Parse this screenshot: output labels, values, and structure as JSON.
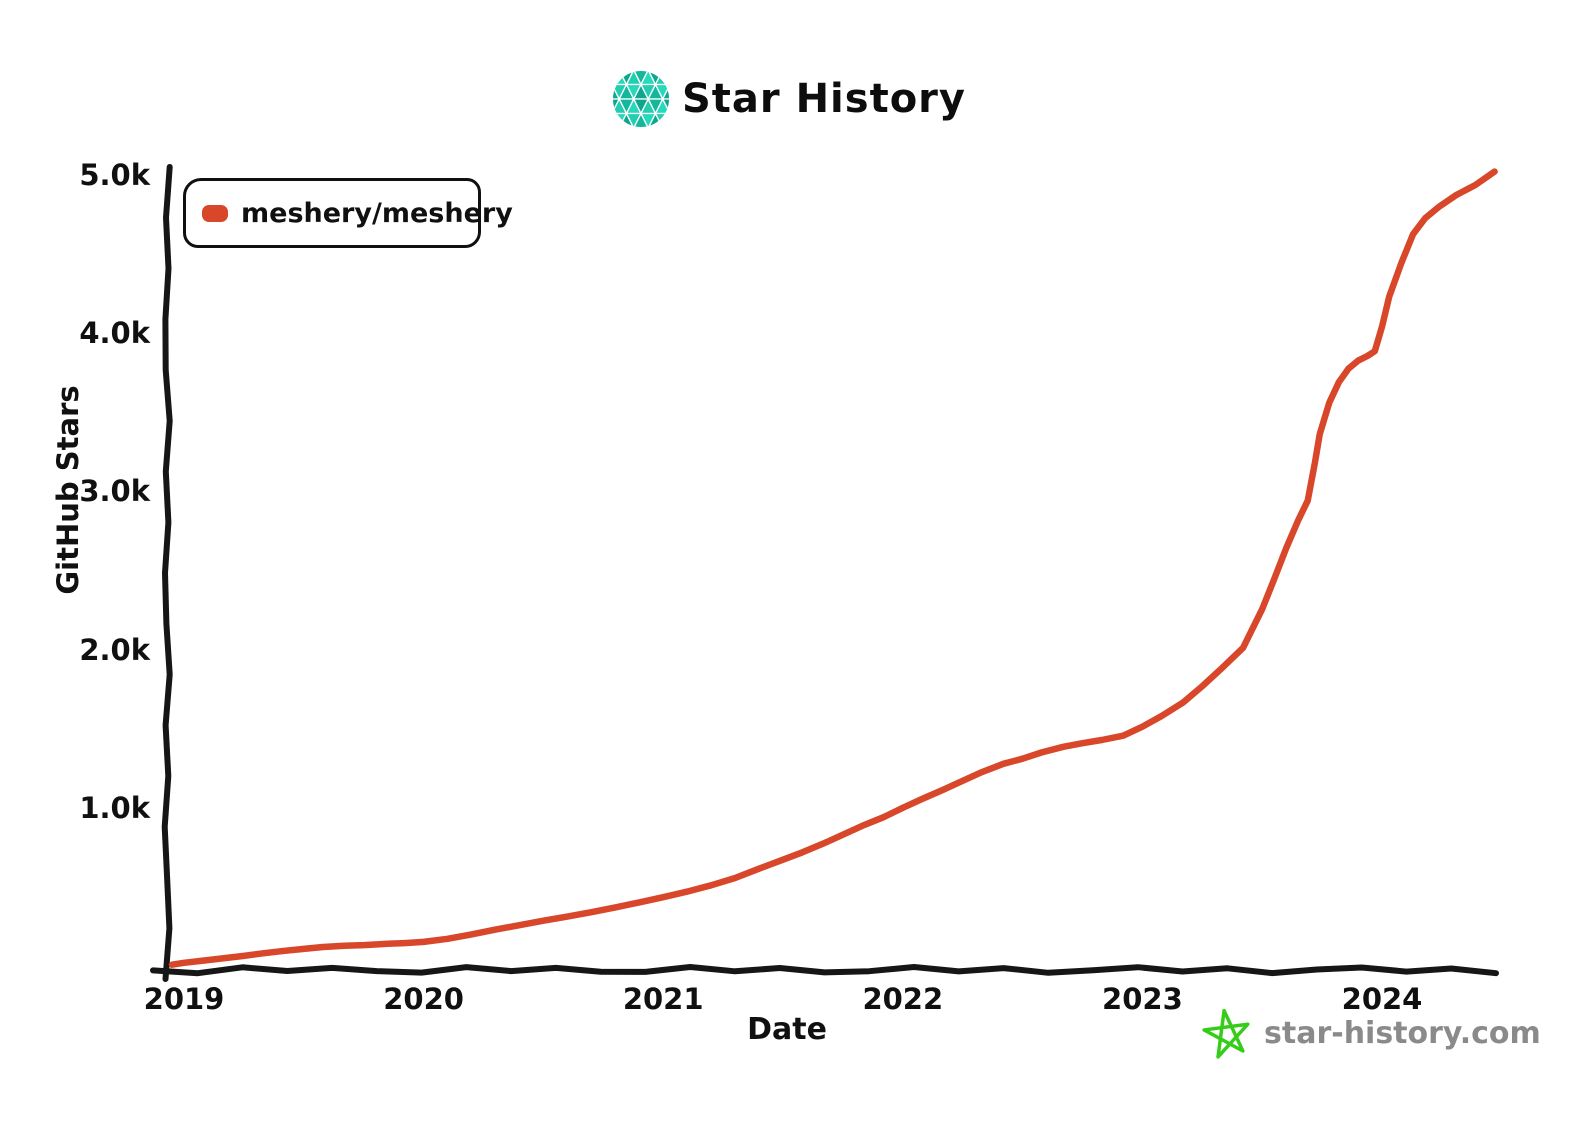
{
  "meta": {
    "site": "star-history.com",
    "background": "#ffffff",
    "axis_color": "#161616",
    "accent_red": "#d9472b",
    "logo_teal_shades": [
      "#15b79c",
      "#27d8ba",
      "#0ea78e",
      "#23cdb0"
    ],
    "watermark_green": "#35cd17",
    "watermark_gray": "#8a8a8a"
  },
  "header": {
    "title": "Star History",
    "logo_icon": "star-history-logo-icon"
  },
  "legend": {
    "position": "top-left",
    "items": [
      {
        "label": "meshery/meshery",
        "color": "#d9472b"
      }
    ]
  },
  "watermark": {
    "label": "star-history.com",
    "icon": "green-star-icon"
  },
  "chart_data": {
    "type": "line",
    "title": "Star History",
    "xlabel": "Date",
    "ylabel": "GitHub Stars",
    "grid": false,
    "legend_position": "top-left",
    "style": "hand-drawn-xkcd",
    "xlim": [
      2018.93,
      2024.55
    ],
    "ylim": [
      0,
      5100
    ],
    "x_ticks": [
      {
        "label": "2019",
        "value": 2019
      },
      {
        "label": "2020",
        "value": 2020
      },
      {
        "label": "2021",
        "value": 2021
      },
      {
        "label": "2022",
        "value": 2022
      },
      {
        "label": "2023",
        "value": 2023
      },
      {
        "label": "2024",
        "value": 2024
      }
    ],
    "y_ticks": [
      {
        "label": "1.0k",
        "value": 1000
      },
      {
        "label": "2.0k",
        "value": 2000
      },
      {
        "label": "3.0k",
        "value": 3000
      },
      {
        "label": "4.0k",
        "value": 4000
      },
      {
        "label": "5.0k",
        "value": 5000
      }
    ],
    "series": [
      {
        "name": "meshery/meshery",
        "color": "#d9472b",
        "points_format": [
          "year_decimal",
          "stars"
        ],
        "points": [
          [
            2018.95,
            8
          ],
          [
            2019.0,
            20
          ],
          [
            2019.08,
            34
          ],
          [
            2019.17,
            50
          ],
          [
            2019.25,
            64
          ],
          [
            2019.33,
            80
          ],
          [
            2019.42,
            96
          ],
          [
            2019.5,
            108
          ],
          [
            2019.58,
            120
          ],
          [
            2019.67,
            128
          ],
          [
            2019.75,
            132
          ],
          [
            2019.85,
            140
          ],
          [
            2019.92,
            145
          ],
          [
            2020.0,
            152
          ],
          [
            2020.1,
            172
          ],
          [
            2020.2,
            200
          ],
          [
            2020.3,
            230
          ],
          [
            2020.4,
            258
          ],
          [
            2020.5,
            286
          ],
          [
            2020.6,
            312
          ],
          [
            2020.7,
            340
          ],
          [
            2020.8,
            370
          ],
          [
            2020.9,
            402
          ],
          [
            2021.0,
            435
          ],
          [
            2021.1,
            470
          ],
          [
            2021.2,
            510
          ],
          [
            2021.3,
            556
          ],
          [
            2021.4,
            615
          ],
          [
            2021.5,
            672
          ],
          [
            2021.58,
            718
          ],
          [
            2021.67,
            775
          ],
          [
            2021.75,
            830
          ],
          [
            2021.83,
            885
          ],
          [
            2021.92,
            940
          ],
          [
            2022.0,
            1000
          ],
          [
            2022.08,
            1055
          ],
          [
            2022.17,
            1115
          ],
          [
            2022.25,
            1170
          ],
          [
            2022.33,
            1225
          ],
          [
            2022.42,
            1278
          ],
          [
            2022.5,
            1310
          ],
          [
            2022.58,
            1350
          ],
          [
            2022.67,
            1385
          ],
          [
            2022.75,
            1408
          ],
          [
            2022.83,
            1428
          ],
          [
            2022.92,
            1455
          ],
          [
            2023.0,
            1512
          ],
          [
            2023.08,
            1580
          ],
          [
            2023.17,
            1665
          ],
          [
            2023.25,
            1768
          ],
          [
            2023.33,
            1880
          ],
          [
            2023.42,
            2010
          ],
          [
            2023.5,
            2255
          ],
          [
            2023.55,
            2445
          ],
          [
            2023.6,
            2640
          ],
          [
            2023.65,
            2815
          ],
          [
            2023.69,
            2940
          ],
          [
            2023.72,
            3180
          ],
          [
            2023.74,
            3360
          ],
          [
            2023.78,
            3560
          ],
          [
            2023.82,
            3690
          ],
          [
            2023.86,
            3775
          ],
          [
            2023.9,
            3825
          ],
          [
            2023.94,
            3855
          ],
          [
            2023.97,
            3885
          ],
          [
            2024.0,
            4040
          ],
          [
            2024.03,
            4230
          ],
          [
            2024.08,
            4440
          ],
          [
            2024.13,
            4625
          ],
          [
            2024.18,
            4725
          ],
          [
            2024.24,
            4800
          ],
          [
            2024.31,
            4872
          ],
          [
            2024.39,
            4935
          ],
          [
            2024.47,
            5020
          ]
        ]
      }
    ]
  }
}
